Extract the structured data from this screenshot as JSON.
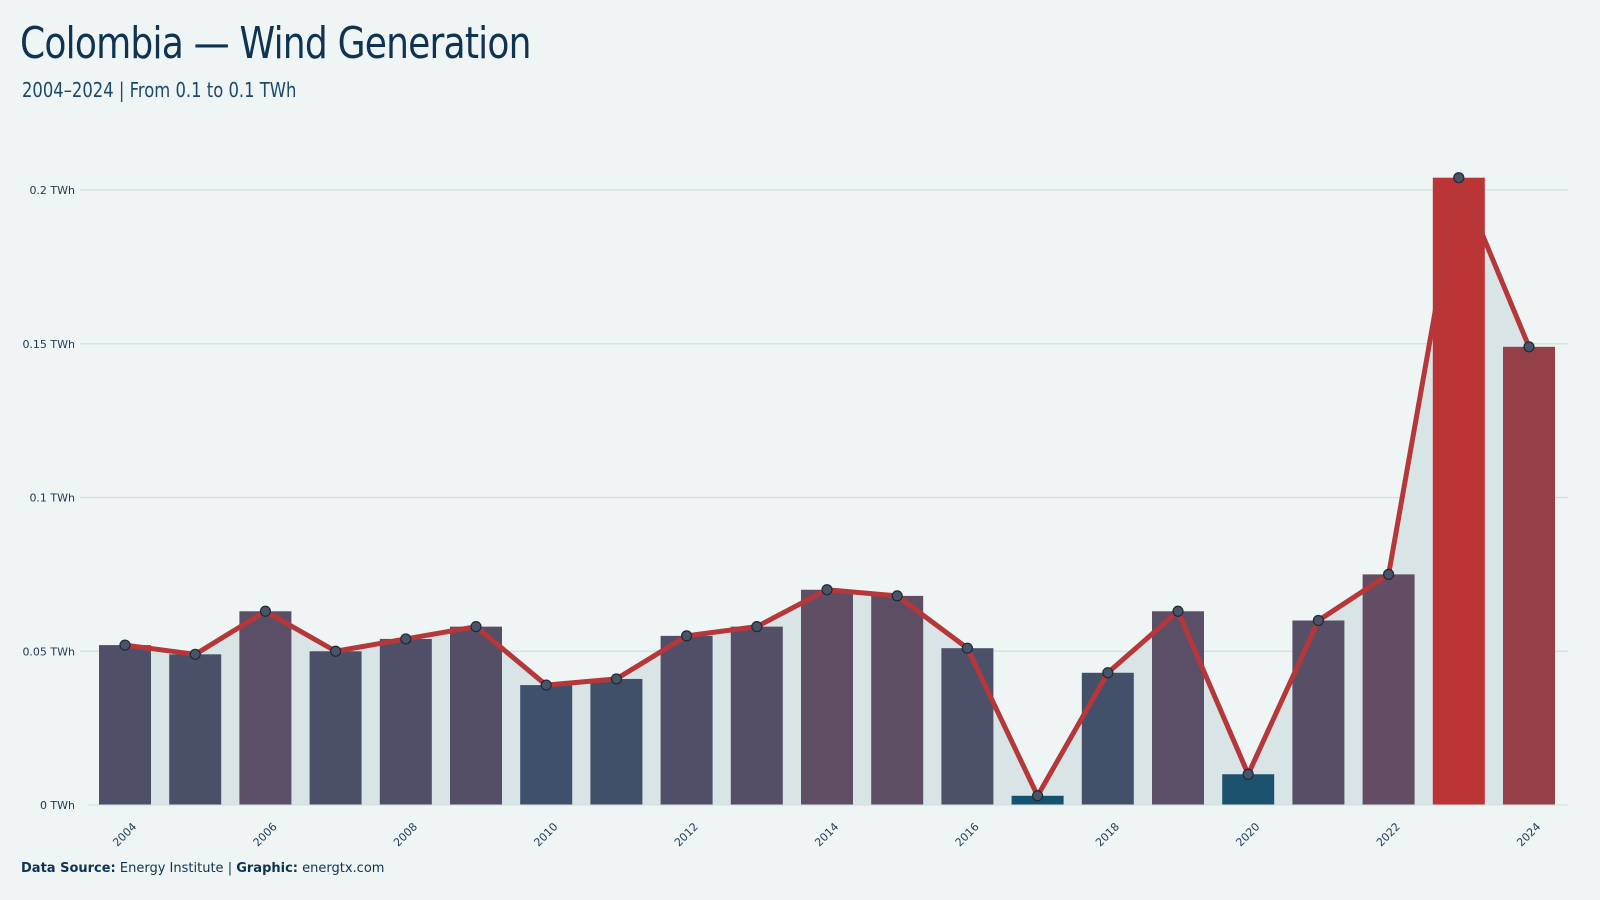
{
  "header": {
    "title": "Colombia — Wind Generation",
    "subtitle": "2004–2024 | From 0.1 to 0.1 TWh"
  },
  "footer": {
    "source_label": "Data Source:",
    "source_value": "Energy Institute",
    "separator": "|",
    "graphic_label": "Graphic:",
    "graphic_value": "energtx.com"
  },
  "colors": {
    "background": "#eff5f5",
    "line": "#b5373a",
    "area": "#d8e4e6",
    "grid": "#d2dfe2",
    "low": "#15526f",
    "mid": "#5a4f66",
    "high": "#bb3436"
  },
  "chart_data": {
    "type": "bar",
    "x": [
      2004,
      2005,
      2006,
      2007,
      2008,
      2009,
      2010,
      2011,
      2012,
      2013,
      2014,
      2015,
      2016,
      2017,
      2018,
      2019,
      2020,
      2021,
      2022,
      2023,
      2024
    ],
    "x_tick_labels": [
      "2004",
      "2006",
      "2008",
      "2010",
      "2012",
      "2014",
      "2016",
      "2018",
      "2020",
      "2022",
      "2024"
    ],
    "values": [
      0.052,
      0.049,
      0.063,
      0.05,
      0.054,
      0.058,
      0.039,
      0.041,
      0.055,
      0.058,
      0.07,
      0.068,
      0.051,
      0.003,
      0.043,
      0.063,
      0.01,
      0.06,
      0.075,
      0.204,
      0.149
    ],
    "y_ticks": [
      0,
      0.05,
      0.1,
      0.15,
      0.2
    ],
    "y_tick_labels": [
      "0 TWh",
      "0.05 TWh",
      "0.1 TWh",
      "0.15 TWh",
      "0.2 TWh"
    ],
    "ylim": [
      0,
      0.204
    ],
    "grid": true,
    "overlay": "line with markers and shaded area"
  }
}
